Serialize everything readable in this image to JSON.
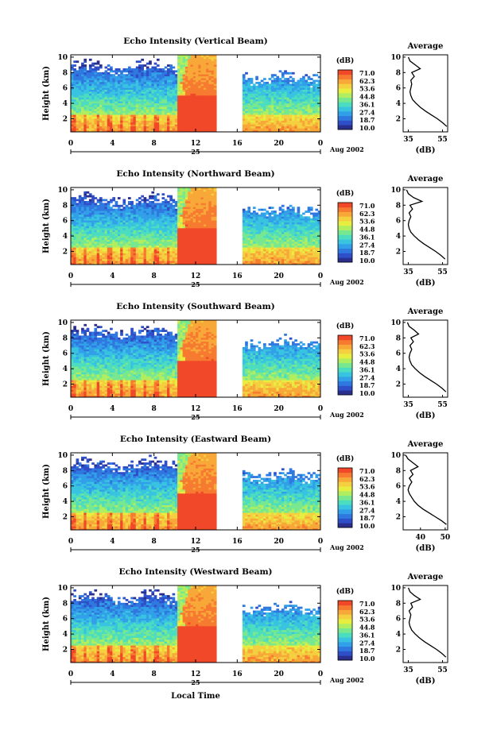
{
  "figure": {
    "xlabel": "Local Time",
    "date_label": "Aug 2002",
    "day_label": "25",
    "cb_unit": "(dB)"
  },
  "chart_data": [
    {
      "type": "heatmap",
      "title": "Echo Intensity (Vertical Beam)",
      "ylabel": "Height (km)",
      "xlabel": "Local Time",
      "x_ticks": [
        "0",
        "4",
        "8",
        "12",
        "16",
        "20",
        "0"
      ],
      "y_ticks": [
        "2",
        "4",
        "6",
        "8",
        "10"
      ],
      "xlim": [
        0,
        24
      ],
      "ylim": [
        0.3,
        10.3
      ],
      "colorbar": {
        "unit": "(dB)",
        "ticks": [
          "71.0",
          "62.3",
          "53.6",
          "44.8",
          "36.1",
          "27.4",
          "18.7",
          "10.0"
        ]
      },
      "data_gap": [
        14,
        16.5
      ],
      "profile": {
        "title": "Average",
        "xlabel": "(dB)",
        "x_ticks": [
          "35",
          "55"
        ],
        "xlim": [
          32,
          58
        ],
        "y_ticks": [
          "2",
          "4",
          "6",
          "8",
          "10"
        ],
        "ylim": [
          0.3,
          10.3
        ],
        "points": [
          [
            1,
            57.5
          ],
          [
            1.5,
            55
          ],
          [
            2,
            52
          ],
          [
            2.5,
            48.5
          ],
          [
            3,
            45
          ],
          [
            3.5,
            42
          ],
          [
            4,
            39.5
          ],
          [
            4.5,
            37.5
          ],
          [
            5,
            36.5
          ],
          [
            5.5,
            36
          ],
          [
            6,
            36.5
          ],
          [
            6.5,
            37
          ],
          [
            7,
            36.5
          ],
          [
            7.5,
            38.5
          ],
          [
            8,
            37
          ],
          [
            8.5,
            42
          ],
          [
            9,
            39
          ],
          [
            9.5,
            36
          ],
          [
            10,
            35
          ]
        ]
      }
    },
    {
      "type": "heatmap",
      "title": "Echo Intensity (Northward Beam)",
      "ylabel": "Height (km)",
      "xlabel": "Local Time",
      "x_ticks": [
        "0",
        "4",
        "8",
        "12",
        "16",
        "20",
        "0"
      ],
      "y_ticks": [
        "2",
        "4",
        "6",
        "8",
        "10"
      ],
      "xlim": [
        0,
        24
      ],
      "ylim": [
        0.3,
        10.3
      ],
      "colorbar": {
        "unit": "(dB)",
        "ticks": [
          "71.0",
          "62.3",
          "53.6",
          "44.8",
          "36.1",
          "27.4",
          "18.7",
          "10.0"
        ]
      },
      "data_gap": [
        14,
        16.5
      ],
      "profile": {
        "title": "Average",
        "xlabel": "(dB)",
        "x_ticks": [
          "35",
          "55"
        ],
        "xlim": [
          32,
          58
        ],
        "y_ticks": [
          "2",
          "4",
          "6",
          "8",
          "10"
        ],
        "ylim": [
          0.3,
          10.3
        ],
        "points": [
          [
            1,
            56.5
          ],
          [
            1.5,
            54
          ],
          [
            2,
            51
          ],
          [
            2.5,
            47.5
          ],
          [
            3,
            44
          ],
          [
            3.5,
            41
          ],
          [
            4,
            38.5
          ],
          [
            4.5,
            36.5
          ],
          [
            5,
            35.5
          ],
          [
            5.5,
            35
          ],
          [
            6,
            35.5
          ],
          [
            6.5,
            36.5
          ],
          [
            7,
            35.5
          ],
          [
            7.5,
            37.5
          ],
          [
            8,
            36
          ],
          [
            8.5,
            43
          ],
          [
            9,
            38
          ],
          [
            9.5,
            35
          ],
          [
            10,
            34
          ]
        ]
      }
    },
    {
      "type": "heatmap",
      "title": "Echo Intensity (Southward Beam)",
      "ylabel": "Height (km)",
      "xlabel": "Local Time",
      "x_ticks": [
        "0",
        "4",
        "8",
        "12",
        "16",
        "20",
        "0"
      ],
      "y_ticks": [
        "2",
        "4",
        "6",
        "8",
        "10"
      ],
      "xlim": [
        0,
        24
      ],
      "ylim": [
        0.3,
        10.3
      ],
      "colorbar": {
        "unit": "(dB)",
        "ticks": [
          "71.0",
          "62.3",
          "53.6",
          "44.8",
          "36.1",
          "27.4",
          "18.7",
          "10.0"
        ]
      },
      "data_gap": [
        14,
        16.5
      ],
      "profile": {
        "title": "Average",
        "xlabel": "(dB)",
        "x_ticks": [
          "35",
          "55"
        ],
        "xlim": [
          32,
          58
        ],
        "y_ticks": [
          "2",
          "4",
          "6",
          "8",
          "10"
        ],
        "ylim": [
          0.3,
          10.3
        ],
        "points": [
          [
            1,
            57
          ],
          [
            1.5,
            54.5
          ],
          [
            2,
            51.5
          ],
          [
            2.5,
            48
          ],
          [
            3,
            44.5
          ],
          [
            3.5,
            41.5
          ],
          [
            4,
            39
          ],
          [
            4.5,
            37
          ],
          [
            5,
            36
          ],
          [
            5.5,
            35.5
          ],
          [
            6,
            36
          ],
          [
            6.5,
            37
          ],
          [
            7,
            36
          ],
          [
            7.5,
            38
          ],
          [
            8,
            36.5
          ],
          [
            8.5,
            41
          ],
          [
            9,
            38.5
          ],
          [
            9.5,
            35.5
          ],
          [
            10,
            34.5
          ]
        ]
      }
    },
    {
      "type": "heatmap",
      "title": "Echo Intensity (Eastward Beam)",
      "ylabel": "Height (km)",
      "xlabel": "Local Time",
      "x_ticks": [
        "0",
        "4",
        "8",
        "12",
        "16",
        "20",
        "0"
      ],
      "y_ticks": [
        "2",
        "4",
        "6",
        "8",
        "10"
      ],
      "xlim": [
        0,
        24
      ],
      "ylim": [
        0.3,
        10.3
      ],
      "colorbar": {
        "unit": "(dB)",
        "ticks": [
          "71.0",
          "62.3",
          "53.6",
          "44.8",
          "36.1",
          "27.4",
          "18.7",
          "10.0"
        ]
      },
      "data_gap": [
        14,
        16.5
      ],
      "profile": {
        "title": "Average",
        "xlabel": "(dB)",
        "x_ticks": [
          "40",
          "50"
        ],
        "xlim": [
          33,
          51
        ],
        "y_ticks": [
          "2",
          "4",
          "6",
          "8",
          "10"
        ],
        "ylim": [
          0.3,
          10.3
        ],
        "points": [
          [
            1,
            50.5
          ],
          [
            1.5,
            48.5
          ],
          [
            2,
            46
          ],
          [
            2.5,
            43.5
          ],
          [
            3,
            41
          ],
          [
            3.5,
            39
          ],
          [
            4,
            37.5
          ],
          [
            4.5,
            36.5
          ],
          [
            5,
            35.5
          ],
          [
            5.5,
            35
          ],
          [
            6,
            35.5
          ],
          [
            6.5,
            36.5
          ],
          [
            7,
            35.5
          ],
          [
            7.5,
            37
          ],
          [
            8,
            36
          ],
          [
            8.5,
            39
          ],
          [
            9,
            37
          ],
          [
            9.5,
            35
          ],
          [
            10,
            34
          ]
        ]
      }
    },
    {
      "type": "heatmap",
      "title": "Echo Intensity (Westward Beam)",
      "ylabel": "Height (km)",
      "xlabel": "Local Time",
      "x_ticks": [
        "0",
        "4",
        "8",
        "12",
        "16",
        "20",
        "0"
      ],
      "y_ticks": [
        "2",
        "4",
        "6",
        "8",
        "10"
      ],
      "xlim": [
        0,
        24
      ],
      "ylim": [
        0.3,
        10.3
      ],
      "colorbar": {
        "unit": "(dB)",
        "ticks": [
          "71.0",
          "62.3",
          "53.6",
          "44.8",
          "36.1",
          "27.4",
          "18.7",
          "10.0"
        ]
      },
      "data_gap": [
        14,
        16.5
      ],
      "profile": {
        "title": "Average",
        "xlabel": "(dB)",
        "x_ticks": [
          "35",
          "55"
        ],
        "xlim": [
          32,
          58
        ],
        "y_ticks": [
          "2",
          "4",
          "6",
          "8",
          "10"
        ],
        "ylim": [
          0.3,
          10.3
        ],
        "points": [
          [
            1,
            57
          ],
          [
            1.5,
            54.5
          ],
          [
            2,
            51.5
          ],
          [
            2.5,
            48
          ],
          [
            3,
            44.5
          ],
          [
            3.5,
            41.5
          ],
          [
            4,
            39
          ],
          [
            4.5,
            37
          ],
          [
            5,
            36
          ],
          [
            5.5,
            35.5
          ],
          [
            6,
            36
          ],
          [
            6.5,
            36.5
          ],
          [
            7,
            35.5
          ],
          [
            7.5,
            37.5
          ],
          [
            8,
            36.5
          ],
          [
            8.5,
            42
          ],
          [
            9,
            38.5
          ],
          [
            9.5,
            36
          ],
          [
            10,
            35
          ]
        ]
      }
    }
  ]
}
